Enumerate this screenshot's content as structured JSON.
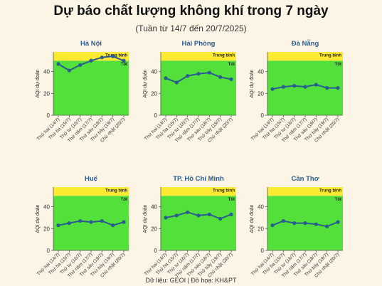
{
  "header": {
    "title": "Dự báo chất lượng không khí trong 7 ngày",
    "subtitle": "(Tuần từ 14/7 đến 20/7/2025)"
  },
  "footer": {
    "source": "Dữ liệu: GEOI | Đồ họa: KH&PT"
  },
  "colors": {
    "good_band": "#53e03a",
    "moderate_band": "#fbe932",
    "line": "#2a5c8f",
    "city_title": "#2a5c8f"
  },
  "chart_data": [
    {
      "type": "line",
      "title": "Hà Nội",
      "ylabel": "AQI dự đoán",
      "categories": [
        "Thứ hai (14/7)",
        "Thứ ba (15/7)",
        "Thứ tư (16/7)",
        "Thứ năm (17/7)",
        "Thứ sáu (18/7)",
        "Thứ bảy (19/7)",
        "Chủ nhật (20/7)"
      ],
      "values": [
        47,
        41,
        46,
        50,
        53,
        54,
        50
      ],
      "ylim": [
        0,
        58
      ],
      "yticks": [
        0,
        20,
        40
      ],
      "bands": [
        {
          "label": "Tốt",
          "from": 0,
          "to": 50,
          "color": "#53e03a"
        },
        {
          "label": "Trung bình",
          "from": 50,
          "to": 58,
          "color": "#fbe932"
        }
      ],
      "grid": false
    },
    {
      "type": "line",
      "title": "Hải Phòng",
      "ylabel": "AQI dự đoán",
      "categories": [
        "Thứ hai (14/7)",
        "Thứ ba (15/7)",
        "Thứ tư (16/7)",
        "Thứ năm (17/7)",
        "Thứ sáu (18/7)",
        "Thứ bảy (19/7)",
        "Chủ nhật (20/7)"
      ],
      "values": [
        34,
        30,
        36,
        38,
        39,
        35,
        33
      ],
      "ylim": [
        0,
        58
      ],
      "yticks": [
        0,
        20,
        40
      ],
      "bands": [
        {
          "label": "Tốt",
          "from": 0,
          "to": 50,
          "color": "#53e03a"
        },
        {
          "label": "Trung bình",
          "from": 50,
          "to": 58,
          "color": "#fbe932"
        }
      ],
      "grid": false
    },
    {
      "type": "line",
      "title": "Đà Nẵng",
      "ylabel": "AQI dự đoán",
      "categories": [
        "Thứ hai (14/7)",
        "Thứ ba (15/7)",
        "Thứ tư (16/7)",
        "Thứ năm (17/7)",
        "Thứ sáu (18/7)",
        "Thứ bảy (19/7)",
        "Chủ nhật (20/7)"
      ],
      "values": [
        24,
        26,
        27,
        26,
        28,
        25,
        25
      ],
      "ylim": [
        0,
        58
      ],
      "yticks": [
        0,
        20,
        40
      ],
      "bands": [
        {
          "label": "Tốt",
          "from": 0,
          "to": 50,
          "color": "#53e03a"
        },
        {
          "label": "Trung bình",
          "from": 50,
          "to": 58,
          "color": "#fbe932"
        }
      ],
      "grid": false
    },
    {
      "type": "line",
      "title": "Huế",
      "ylabel": "AQI dự đoán",
      "categories": [
        "Thứ hai (14/7)",
        "Thứ ba (15/7)",
        "Thứ tư (16/7)",
        "Thứ năm (17/7)",
        "Thứ sáu (18/7)",
        "Thứ bảy (19/7)",
        "Chủ nhật (20/7)"
      ],
      "values": [
        23,
        25,
        27,
        26,
        27,
        23,
        26
      ],
      "ylim": [
        0,
        58
      ],
      "yticks": [
        0,
        20,
        40
      ],
      "bands": [
        {
          "label": "Tốt",
          "from": 0,
          "to": 50,
          "color": "#53e03a"
        },
        {
          "label": "Trung bình",
          "from": 50,
          "to": 58,
          "color": "#fbe932"
        }
      ],
      "grid": false
    },
    {
      "type": "line",
      "title": "TP. Hồ Chí Minh",
      "ylabel": "AQI dự đoán",
      "categories": [
        "Thứ hai (14/7)",
        "Thứ ba (15/7)",
        "Thứ tư (16/7)",
        "Thứ năm (17/7)",
        "Thứ sáu (18/7)",
        "Thứ bảy (19/7)",
        "Chủ nhật (20/7)"
      ],
      "values": [
        30,
        32,
        35,
        32,
        33,
        29,
        33
      ],
      "ylim": [
        0,
        58
      ],
      "yticks": [
        0,
        20,
        40
      ],
      "bands": [
        {
          "label": "Tốt",
          "from": 0,
          "to": 50,
          "color": "#53e03a"
        },
        {
          "label": "Trung bình",
          "from": 50,
          "to": 58,
          "color": "#fbe932"
        }
      ],
      "grid": false
    },
    {
      "type": "line",
      "title": "Cần Thơ",
      "ylabel": "AQI dự đoán",
      "categories": [
        "Thứ hai (14/7)",
        "Thứ ba (15/7)",
        "Thứ tư (16/7)",
        "Thứ năm (17/7)",
        "Thứ sáu (18/7)",
        "Thứ bảy (19/7)",
        "Chủ nhật (20/7)"
      ],
      "values": [
        23,
        27,
        25,
        25,
        24,
        22,
        26
      ],
      "ylim": [
        0,
        58
      ],
      "yticks": [
        0,
        20,
        40
      ],
      "bands": [
        {
          "label": "Tốt",
          "from": 0,
          "to": 50,
          "color": "#53e03a"
        },
        {
          "label": "Trung bình",
          "from": 50,
          "to": 58,
          "color": "#fbe932"
        }
      ],
      "grid": false
    }
  ]
}
